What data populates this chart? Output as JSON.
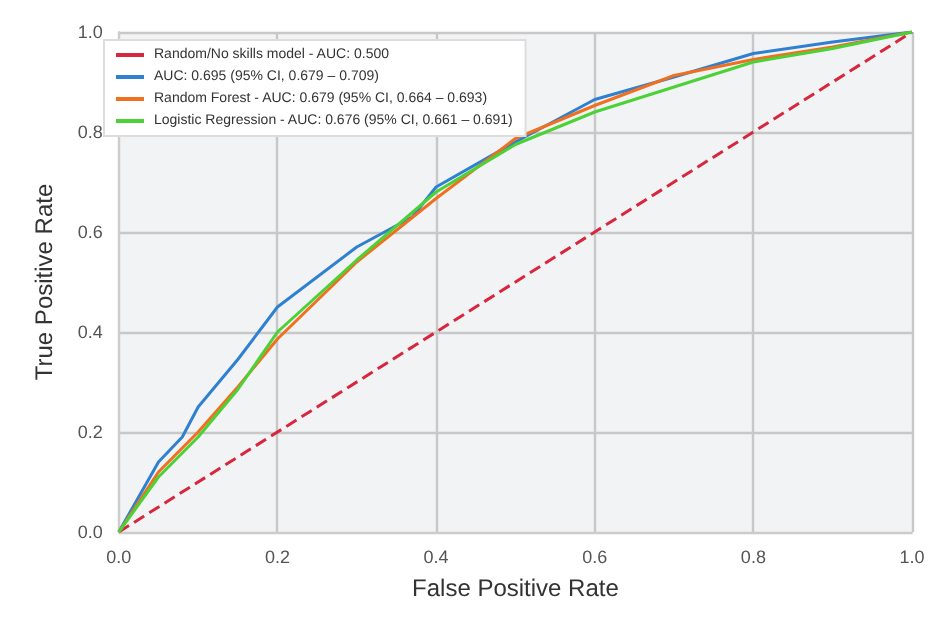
{
  "chart_data": {
    "type": "line",
    "xlabel": "False Positive Rate",
    "ylabel": "True Positive Rate",
    "xlim": [
      0,
      1
    ],
    "ylim": [
      0,
      1
    ],
    "xticks": [
      {
        "value": 0,
        "label": "0.0"
      },
      {
        "value": 0.2,
        "label": "0.2"
      },
      {
        "value": 0.4,
        "label": "0.4"
      },
      {
        "value": 0.6,
        "label": "0.6"
      },
      {
        "value": 0.8,
        "label": "0.8"
      },
      {
        "value": 1,
        "label": "1.0"
      }
    ],
    "yticks": [
      {
        "value": 0,
        "label": "0.0"
      },
      {
        "value": 0.2,
        "label": "0.2"
      },
      {
        "value": 0.4,
        "label": "0.4"
      },
      {
        "value": 0.6,
        "label": "0.6"
      },
      {
        "value": 0.8,
        "label": "0.8"
      },
      {
        "value": 1,
        "label": "1.0"
      }
    ],
    "grid": true,
    "legend": "top left",
    "marker": "none",
    "series": [
      {
        "name": "Random/No skills model - AUC: 0.500",
        "color": "#d7263d",
        "line_style": "dashed",
        "x": [
          0,
          1
        ],
        "values": [
          0,
          1
        ]
      },
      {
        "name": "AUC: 0.695 (95% CI, 0.679 – 0.709)",
        "color": "#2f80d1",
        "x": [
          0,
          0.05,
          0.08,
          0.1,
          0.15,
          0.2,
          0.3,
          0.37,
          0.4,
          0.5,
          0.6,
          0.7,
          0.8,
          0.9,
          1
        ],
        "values": [
          0,
          0.14,
          0.19,
          0.25,
          0.345,
          0.45,
          0.57,
          0.63,
          0.69,
          0.78,
          0.865,
          0.91,
          0.957,
          0.98,
          1
        ]
      },
      {
        "name": "Random Forest - AUC: 0.679 (95% CI, 0.664 – 0.693)",
        "color": "#f07020",
        "x": [
          0,
          0.05,
          0.1,
          0.15,
          0.2,
          0.3,
          0.4,
          0.5,
          0.6,
          0.7,
          0.8,
          0.9,
          1
        ],
        "values": [
          0,
          0.12,
          0.2,
          0.29,
          0.386,
          0.54,
          0.667,
          0.787,
          0.853,
          0.913,
          0.945,
          0.97,
          1
        ]
      },
      {
        "name": "Logistic Regression - AUC: 0.676 (95% CI, 0.661 – 0.691)",
        "color": "#4cd137",
        "x": [
          0,
          0.05,
          0.1,
          0.15,
          0.2,
          0.3,
          0.4,
          0.5,
          0.6,
          0.7,
          0.8,
          0.9,
          1
        ],
        "values": [
          0,
          0.11,
          0.19,
          0.285,
          0.4,
          0.544,
          0.68,
          0.775,
          0.84,
          0.89,
          0.94,
          0.967,
          1
        ]
      }
    ]
  }
}
